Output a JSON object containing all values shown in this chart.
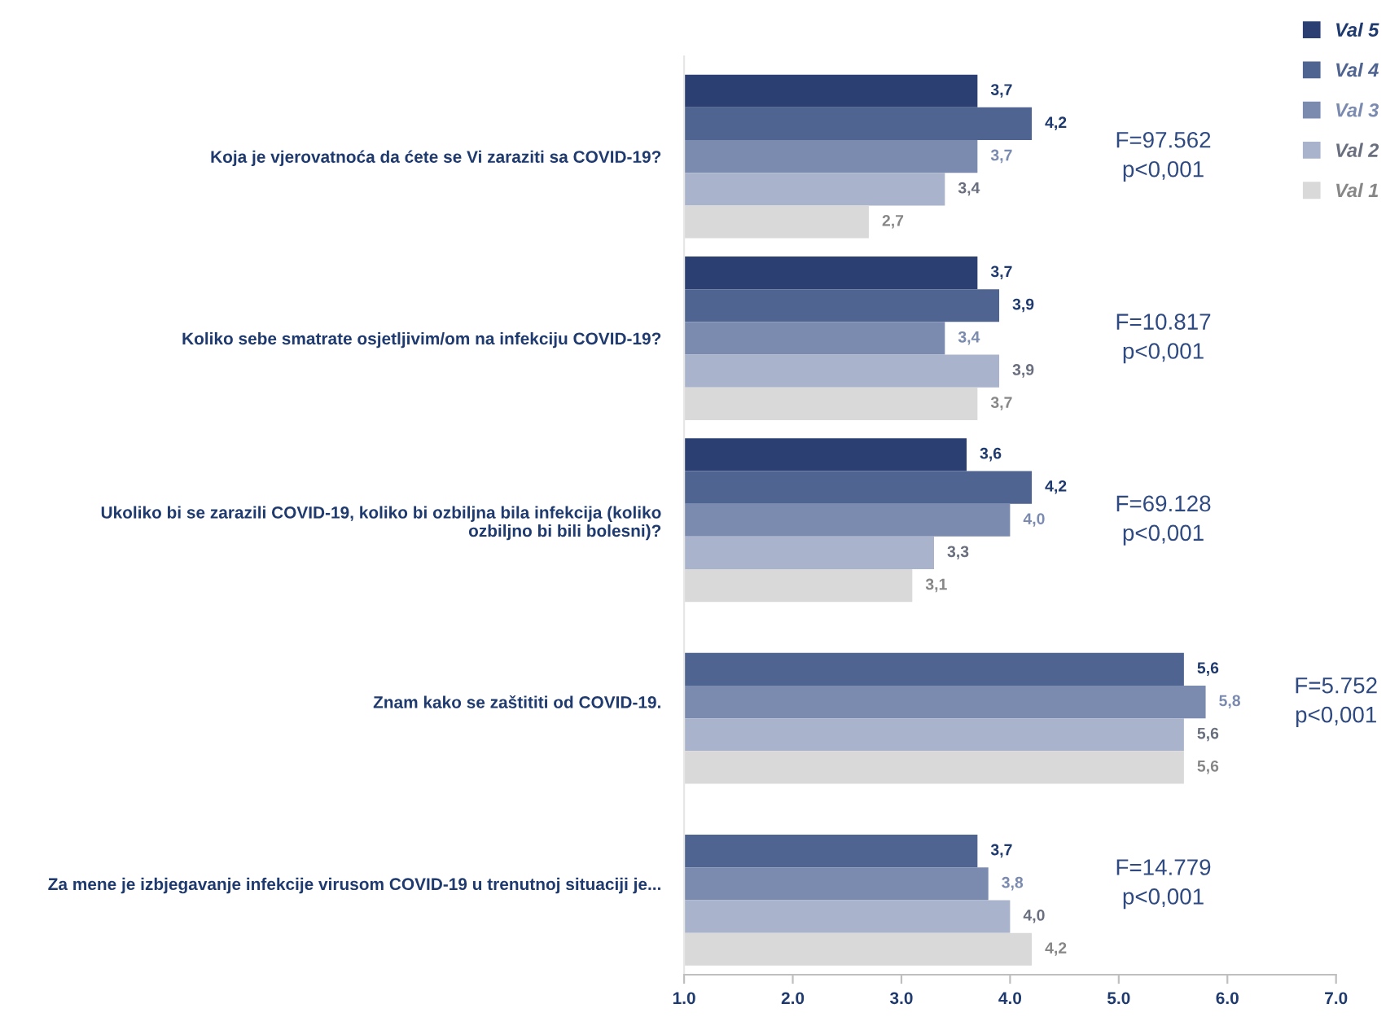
{
  "chart_data": {
    "type": "bar",
    "orientation": "horizontal",
    "categories": [
      "Koja je vjerovatnoća da ćete se Vi zaraziti sa COVID-19?",
      "Koliko sebe smatrate osjetljivim/om na infekciju COVID-19?",
      "Ukoliko bi se zarazili COVID-19, koliko bi ozbiljna bila infekcija (koliko\nozbiljno bi bili bolesni)?",
      "Znam kako se zaštititi od COVID-19.",
      "Za mene je izbjegavanje infekcije virusom COVID-19 u trenutnoj situaciji je..."
    ],
    "series": [
      {
        "name": "Val 5",
        "color": "#2b3f73",
        "values": [
          3.7,
          3.7,
          3.6,
          null,
          null
        ],
        "value_labels": [
          "3,7",
          "3,7",
          "3,6",
          null,
          null
        ]
      },
      {
        "name": "Val 4",
        "color": "#4f6491",
        "values": [
          4.2,
          3.9,
          4.2,
          5.6,
          3.7
        ],
        "value_labels": [
          "4,2",
          "3,9",
          "4,2",
          "5,6",
          "3,7"
        ]
      },
      {
        "name": "Val 3",
        "color": "#7b8bb0",
        "values": [
          3.7,
          3.4,
          4.0,
          5.8,
          3.8
        ],
        "value_labels": [
          "3,7",
          "3,4",
          "4,0",
          "5,8",
          "3,8"
        ]
      },
      {
        "name": "Val 2",
        "color": "#a9b3cc",
        "values": [
          3.4,
          3.9,
          3.3,
          5.6,
          4.0
        ],
        "value_labels": [
          "3,4",
          "3,9",
          "3,3",
          "5,6",
          "4,0"
        ]
      },
      {
        "name": "Val 1",
        "color": "#d9d9d9",
        "values": [
          2.7,
          3.7,
          3.1,
          5.6,
          4.2
        ],
        "value_labels": [
          "2,7",
          "3,7",
          "3,1",
          "5,6",
          "4,2"
        ]
      }
    ],
    "xlim": [
      1,
      7
    ],
    "xticks": [
      {
        "value": 1,
        "label": "1.0"
      },
      {
        "value": 2,
        "label": "2.0"
      },
      {
        "value": 3,
        "label": "3.0"
      },
      {
        "value": 4,
        "label": "4.0"
      },
      {
        "value": 5,
        "label": "5.0"
      },
      {
        "value": 6,
        "label": "6.0"
      },
      {
        "value": 7,
        "label": "7.0"
      }
    ],
    "annotations": [
      "F=97.562\np<0,001",
      "F=10.817\np<0,001",
      "F=69.128\np<0,001",
      "F=5.752\np<0,001",
      "F=14.779\np<0,001"
    ],
    "legend": "top right",
    "grid": false
  }
}
